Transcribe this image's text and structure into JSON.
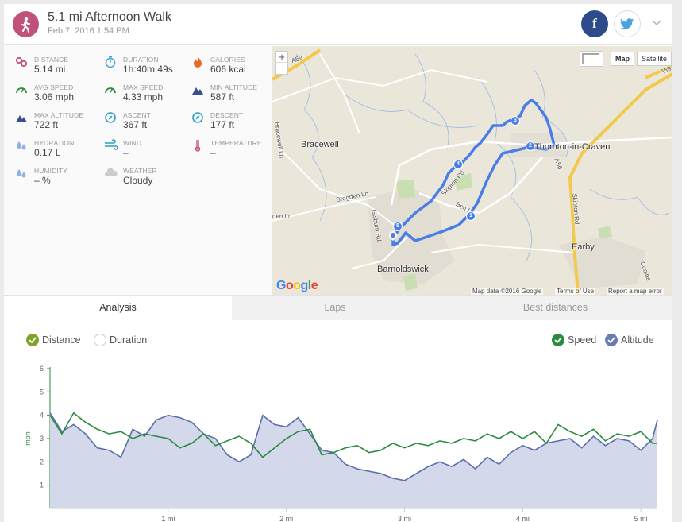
{
  "header": {
    "title": "5.1 mi Afternoon Walk",
    "subtitle": "Feb 7, 2016 1:54 PM",
    "facebook_label": "f"
  },
  "stats": [
    {
      "label": "DISTANCE",
      "value": "5.14 mi",
      "icon": "distance-icon",
      "color": "#c1517a"
    },
    {
      "label": "DURATION",
      "value": "1h:40m:49s",
      "icon": "stopwatch-icon",
      "color": "#4aa3d8"
    },
    {
      "label": "CALORIES",
      "value": "606 kcal",
      "icon": "flame-icon",
      "color": "#e86a2b"
    },
    {
      "label": "AVG SPEED",
      "value": "3.06 mph",
      "icon": "speedometer-icon",
      "color": "#2a8a3e"
    },
    {
      "label": "MAX SPEED",
      "value": "4.33 mph",
      "icon": "speedometer-icon",
      "color": "#2a8a3e"
    },
    {
      "label": "MIN ALTITUDE",
      "value": "587 ft",
      "icon": "mountain-icon",
      "color": "#3a4f8f"
    },
    {
      "label": "MAX ALTITUDE",
      "value": "722 ft",
      "icon": "mountain-icon",
      "color": "#3a4f8f"
    },
    {
      "label": "ASCENT",
      "value": "367 ft",
      "icon": "compass-icon",
      "color": "#2d9cc7"
    },
    {
      "label": "DESCENT",
      "value": "177 ft",
      "icon": "compass-icon",
      "color": "#2d9cc7"
    },
    {
      "label": "HYDRATION",
      "value": "0.17 L",
      "icon": "droplets-icon",
      "color": "#8fb3e0"
    },
    {
      "label": "WIND",
      "value": "–",
      "icon": "wind-icon",
      "color": "#2d9cc7"
    },
    {
      "label": "TEMPERATURE",
      "value": "–",
      "icon": "thermometer-icon",
      "color": "#c1517a"
    },
    {
      "label": "HUMIDITY",
      "value": "– %",
      "icon": "droplets-icon",
      "color": "#8fb3e0"
    },
    {
      "label": "WEATHER",
      "value": "Cloudy",
      "icon": "cloud-icon",
      "color": "#cccccc"
    }
  ],
  "map": {
    "zoom_in": "+",
    "zoom_out": "−",
    "type_map": "Map",
    "type_satellite": "Satellite",
    "labels": {
      "bracewell": "Bracewell",
      "thornton": "Thornton-in-Craven",
      "barnoldswick": "Barnoldswick",
      "earby": "Earby",
      "bracewell_ln": "Bracewell Ln",
      "brogden_ln": "Brogden Ln",
      "gisburn_rd": "Gisburn Rd",
      "skipton_rd": "Skipton Rd",
      "skipton_rd2": "Skipton Rd",
      "ben_ln": "Ben Ln",
      "a59": "A59",
      "a59b": "A59",
      "a56": "A56",
      "coolhe": "Coolhe",
      "den_ln": "den Ln"
    },
    "markers": [
      "1",
      "2",
      "3",
      "4",
      "5"
    ],
    "logo": "Google",
    "footer": {
      "map_data": "Map data ©2016 Google",
      "terms": "Terms of Use",
      "report": "Report a map error"
    },
    "colors": {
      "route": "#4a7ee6",
      "major_road": "#f2c94c"
    }
  },
  "tabs": [
    {
      "label": "Analysis",
      "active": true
    },
    {
      "label": "Laps",
      "active": false
    },
    {
      "label": "Best distances",
      "active": false
    }
  ],
  "chart_legend": {
    "distance": "Distance",
    "duration": "Duration",
    "speed": "Speed",
    "altitude": "Altitude"
  },
  "chart_data": {
    "type": "line",
    "ylabel": "mph",
    "ylim": [
      0,
      6
    ],
    "yticks": [
      "1",
      "2",
      "3",
      "4",
      "5",
      "6"
    ],
    "xlim": [
      0,
      5.14
    ],
    "xticks": [
      "1 mi",
      "2 mi",
      "3 mi",
      "4 mi",
      "5 mi"
    ],
    "series": [
      {
        "name": "Speed",
        "color": "#2a8a3e",
        "x": [
          0,
          0.1,
          0.2,
          0.3,
          0.4,
          0.5,
          0.6,
          0.7,
          0.8,
          0.9,
          1.0,
          1.1,
          1.2,
          1.3,
          1.4,
          1.5,
          1.6,
          1.7,
          1.8,
          1.9,
          2.0,
          2.1,
          2.2,
          2.3,
          2.4,
          2.5,
          2.6,
          2.7,
          2.8,
          2.9,
          3.0,
          3.1,
          3.2,
          3.3,
          3.4,
          3.5,
          3.6,
          3.7,
          3.8,
          3.9,
          4.0,
          4.1,
          4.2,
          4.3,
          4.4,
          4.5,
          4.6,
          4.7,
          4.8,
          4.9,
          5.0,
          5.1,
          5.14
        ],
        "values": [
          4.0,
          3.2,
          4.1,
          3.7,
          3.4,
          3.2,
          3.3,
          3.0,
          3.2,
          3.1,
          3.0,
          2.6,
          2.8,
          3.2,
          2.7,
          2.9,
          3.1,
          2.8,
          2.2,
          2.6,
          3.0,
          3.3,
          3.4,
          2.3,
          2.4,
          2.6,
          2.7,
          2.4,
          2.5,
          2.8,
          2.6,
          2.8,
          2.7,
          2.9,
          2.8,
          3.0,
          2.9,
          3.2,
          3.0,
          3.3,
          3.0,
          3.3,
          2.8,
          3.6,
          3.3,
          3.1,
          3.4,
          2.9,
          3.2,
          3.1,
          3.3,
          2.8,
          2.8
        ]
      },
      {
        "name": "Altitude",
        "color": "#5a6eaa",
        "x": [
          0,
          0.1,
          0.2,
          0.3,
          0.4,
          0.5,
          0.6,
          0.7,
          0.8,
          0.9,
          1.0,
          1.1,
          1.2,
          1.3,
          1.4,
          1.5,
          1.6,
          1.7,
          1.8,
          1.9,
          2.0,
          2.1,
          2.2,
          2.3,
          2.4,
          2.5,
          2.6,
          2.7,
          2.8,
          2.9,
          3.0,
          3.1,
          3.2,
          3.3,
          3.4,
          3.5,
          3.6,
          3.7,
          3.8,
          3.9,
          4.0,
          4.1,
          4.2,
          4.3,
          4.4,
          4.5,
          4.6,
          4.7,
          4.8,
          4.9,
          5.0,
          5.1,
          5.14
        ],
        "values": [
          4.1,
          3.3,
          3.6,
          3.2,
          2.6,
          2.5,
          2.2,
          3.4,
          3.1,
          3.8,
          4.0,
          3.9,
          3.7,
          3.2,
          3.0,
          2.3,
          2.0,
          2.3,
          4.0,
          3.6,
          3.5,
          3.9,
          3.2,
          2.5,
          2.4,
          1.9,
          1.7,
          1.6,
          1.5,
          1.3,
          1.2,
          1.5,
          1.8,
          2.0,
          1.8,
          2.1,
          1.7,
          2.2,
          1.9,
          2.4,
          2.7,
          2.5,
          2.8,
          2.9,
          3.0,
          2.6,
          3.1,
          2.7,
          3.0,
          2.9,
          2.5,
          3.0,
          3.8
        ]
      }
    ]
  }
}
